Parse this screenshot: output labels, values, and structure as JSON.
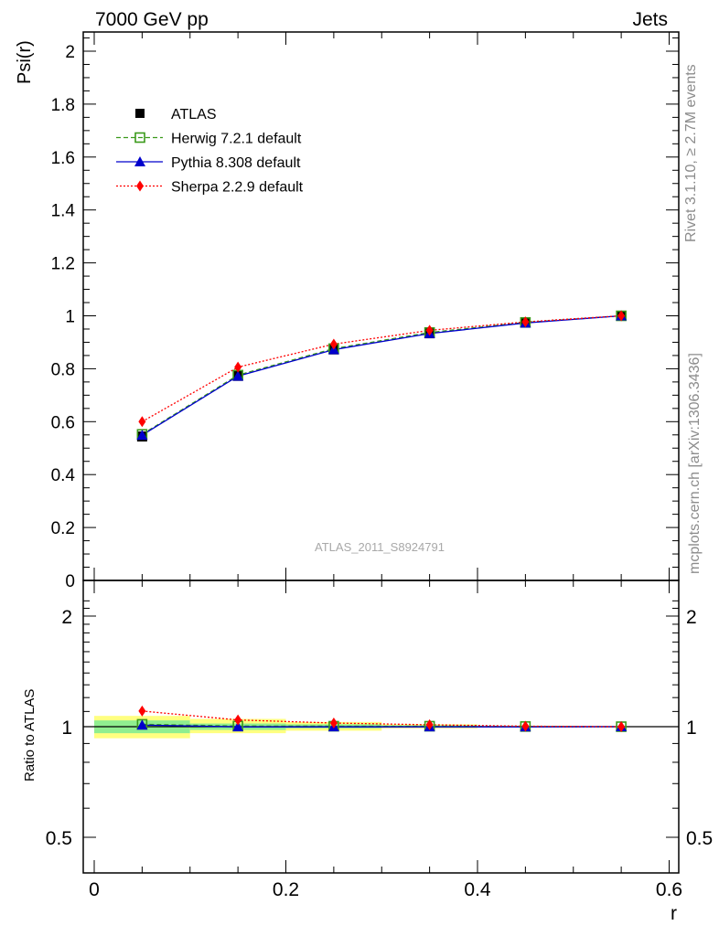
{
  "header": {
    "left": "7000 GeV pp",
    "right": "Jets"
  },
  "side_labels": {
    "rivet": "Rivet 3.1.10, ≥ 2.7M events",
    "mcplots": "mcplots.cern.ch [arXiv:1306.3436]"
  },
  "watermark": "ATLAS_2011_S8924791",
  "chart_data": [
    {
      "type": "line",
      "panel": "main",
      "ylabel": "Psi(r)",
      "xlabel": "",
      "xlim": [
        0,
        0.6
      ],
      "ylim": [
        0,
        2.07
      ],
      "grid": false,
      "legend_position": "top-left",
      "x": [
        0.05,
        0.15,
        0.25,
        0.35,
        0.45,
        0.55
      ],
      "x_ticks": [
        "0",
        "0.2",
        "0.4",
        "0.6"
      ],
      "y_ticks": [
        "0",
        "0.2",
        "0.4",
        "0.6",
        "0.8",
        "1",
        "1.2",
        "1.4",
        "1.6",
        "1.8",
        "2"
      ],
      "series": [
        {
          "name": "ATLAS",
          "color": "#000000",
          "marker": "filled-square",
          "style": "none",
          "values": [
            0.544,
            0.773,
            0.873,
            0.934,
            0.974,
            1.0
          ]
        },
        {
          "name": "Herwig 7.2.1 default",
          "color": "#3a9a1a",
          "marker": "open-square",
          "style": "dashed",
          "values": [
            0.552,
            0.776,
            0.876,
            0.937,
            0.975,
            1.0
          ]
        },
        {
          "name": "Pythia 8.308 default",
          "color": "#0000cc",
          "marker": "triangle",
          "style": "solid",
          "values": [
            0.549,
            0.772,
            0.872,
            0.933,
            0.973,
            1.0
          ]
        },
        {
          "name": "Sherpa 2.2.9 default",
          "color": "#ff0000",
          "marker": "diamond",
          "style": "dotted",
          "values": [
            0.6,
            0.806,
            0.893,
            0.945,
            0.977,
            1.0
          ]
        }
      ]
    },
    {
      "type": "line",
      "panel": "ratio",
      "ylabel": "Ratio to ATLAS",
      "xlabel": "r",
      "xlim": [
        0,
        0.6
      ],
      "ylim": [
        0.5,
        2.0
      ],
      "y_scale": "log",
      "x_ticks": [
        "0",
        "0.2",
        "0.4",
        "0.6"
      ],
      "y_ticks": [
        "0.5",
        "1",
        "2"
      ],
      "bands": {
        "x_edges": [
          0.0,
          0.1,
          0.2,
          0.3,
          0.4,
          0.5,
          0.6
        ],
        "inner_color": "#90ee90",
        "outer_color": "#ffff80",
        "inner_lo": [
          0.96,
          0.98,
          0.99,
          0.995,
          0.998,
          1.0
        ],
        "inner_hi": [
          1.04,
          1.02,
          1.015,
          1.008,
          1.004,
          1.0
        ],
        "outer_lo": [
          0.93,
          0.96,
          0.975,
          0.99,
          0.996,
          1.0
        ],
        "outer_hi": [
          1.07,
          1.05,
          1.03,
          1.015,
          1.006,
          1.0
        ]
      },
      "x": [
        0.05,
        0.15,
        0.25,
        0.35,
        0.45,
        0.55
      ],
      "series": [
        {
          "name": "Herwig 7.2.1 default",
          "color": "#3a9a1a",
          "marker": "open-square",
          "style": "dashed",
          "values": [
            1.015,
            1.004,
            1.003,
            1.003,
            1.001,
            1.0
          ]
        },
        {
          "name": "Pythia 8.308 default",
          "color": "#0000cc",
          "marker": "triangle",
          "style": "solid",
          "values": [
            1.01,
            0.999,
            0.999,
            0.999,
            0.999,
            1.0
          ]
        },
        {
          "name": "Sherpa 2.2.9 default",
          "color": "#ff0000",
          "marker": "diamond",
          "style": "dotted",
          "values": [
            1.103,
            1.043,
            1.023,
            1.012,
            1.003,
            1.0
          ]
        }
      ]
    }
  ]
}
